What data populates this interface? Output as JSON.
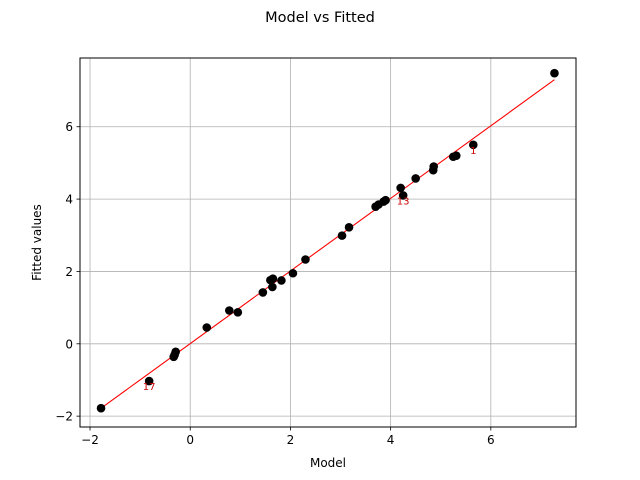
{
  "chart_data": {
    "type": "scatter",
    "title": "Model vs Fitted",
    "xlabel": "Model",
    "ylabel": "Fitted values",
    "xlim": [
      -2.2,
      7.7
    ],
    "ylim": [
      -2.3,
      7.9
    ],
    "xticks": [
      -2,
      0,
      2,
      4,
      6
    ],
    "yticks": [
      -2,
      0,
      2,
      4,
      6
    ],
    "grid": true,
    "point_color": "#000000",
    "line_color": "#ff0000",
    "annotation_color": "#cc0000",
    "points": [
      {
        "x": -1.78,
        "y": -1.78
      },
      {
        "x": -0.82,
        "y": -1.03
      },
      {
        "x": -0.33,
        "y": -0.36
      },
      {
        "x": -0.31,
        "y": -0.3
      },
      {
        "x": -0.29,
        "y": -0.22
      },
      {
        "x": 0.33,
        "y": 0.45
      },
      {
        "x": 0.78,
        "y": 0.92
      },
      {
        "x": 0.95,
        "y": 0.87
      },
      {
        "x": 1.45,
        "y": 1.42
      },
      {
        "x": 1.6,
        "y": 1.76
      },
      {
        "x": 1.65,
        "y": 1.8
      },
      {
        "x": 1.64,
        "y": 1.57
      },
      {
        "x": 1.82,
        "y": 1.75
      },
      {
        "x": 2.05,
        "y": 1.95
      },
      {
        "x": 2.3,
        "y": 2.33
      },
      {
        "x": 3.03,
        "y": 2.99
      },
      {
        "x": 3.17,
        "y": 3.22
      },
      {
        "x": 3.7,
        "y": 3.79
      },
      {
        "x": 3.76,
        "y": 3.85
      },
      {
        "x": 3.86,
        "y": 3.93
      },
      {
        "x": 3.9,
        "y": 3.97
      },
      {
        "x": 4.2,
        "y": 4.31
      },
      {
        "x": 4.25,
        "y": 4.1
      },
      {
        "x": 4.5,
        "y": 4.57
      },
      {
        "x": 4.85,
        "y": 4.8
      },
      {
        "x": 4.86,
        "y": 4.9
      },
      {
        "x": 5.25,
        "y": 5.17
      },
      {
        "x": 5.31,
        "y": 5.2
      },
      {
        "x": 5.65,
        "y": 5.5
      },
      {
        "x": 7.27,
        "y": 7.48
      }
    ],
    "fit_line": {
      "x": [
        -1.78,
        7.27
      ],
      "y": [
        -1.78,
        7.3
      ]
    },
    "annotations": [
      {
        "text": "17",
        "x": -0.82,
        "y": -1.03
      },
      {
        "text": "13",
        "x": 4.25,
        "y": 4.1
      },
      {
        "text": "1",
        "x": 5.65,
        "y": 5.5
      }
    ]
  }
}
